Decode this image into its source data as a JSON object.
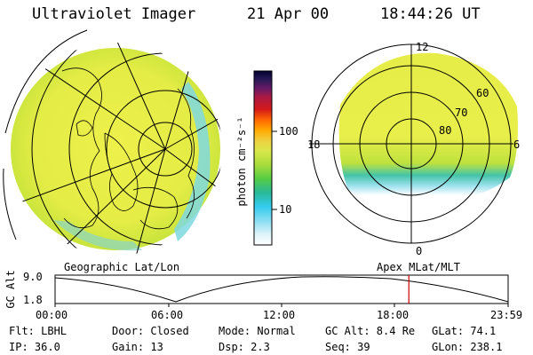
{
  "header": {
    "instrument": "Ultraviolet Imager",
    "date": "21 Apr 00",
    "time": "18:44:26 UT"
  },
  "colorbar": {
    "unit_label": "photon cm⁻²s⁻¹",
    "ticks": [
      "100",
      "10"
    ],
    "colors": [
      "#000033",
      "#2a1a55",
      "#661a66",
      "#aa1a44",
      "#d41a1a",
      "#ff6600",
      "#ffaa00",
      "#f0d040",
      "#d8e84a",
      "#a8dc3c",
      "#55cc44",
      "#2ab99a",
      "#33ccee",
      "#88ddf2",
      "#dff4fa",
      "#ffffff"
    ]
  },
  "maps": {
    "left_caption": "Geographic Lat/Lon",
    "right_caption": "Apex MLat/MLT",
    "mlt_labels": {
      "top": "12",
      "left": "18",
      "right": "6",
      "bottom": "0"
    },
    "mlat_labels": [
      "60",
      "70",
      "80"
    ]
  },
  "altitude_plot": {
    "y_label": "GC Alt",
    "y_ticks": [
      "9.0",
      "1.8"
    ],
    "x_ticks": [
      "00:00",
      "06:00",
      "12:00",
      "18:00",
      "23:59"
    ],
    "current_time_marker_hours": 18.74,
    "marker_color": "#cc0000"
  },
  "status": {
    "row1": {
      "filter": "Flt: LBHL",
      "door": "Door: Closed",
      "mode": "Mode: Normal",
      "gc_alt": "GC Alt: 8.4 Re",
      "glat": "GLat:  74.1"
    },
    "row2": {
      "ip": "IP: 36.0",
      "gain": "Gain: 13",
      "dsp": "Dsp:    2.3",
      "seq": "Seq: 39",
      "glon": "GLon: 238.1"
    }
  }
}
